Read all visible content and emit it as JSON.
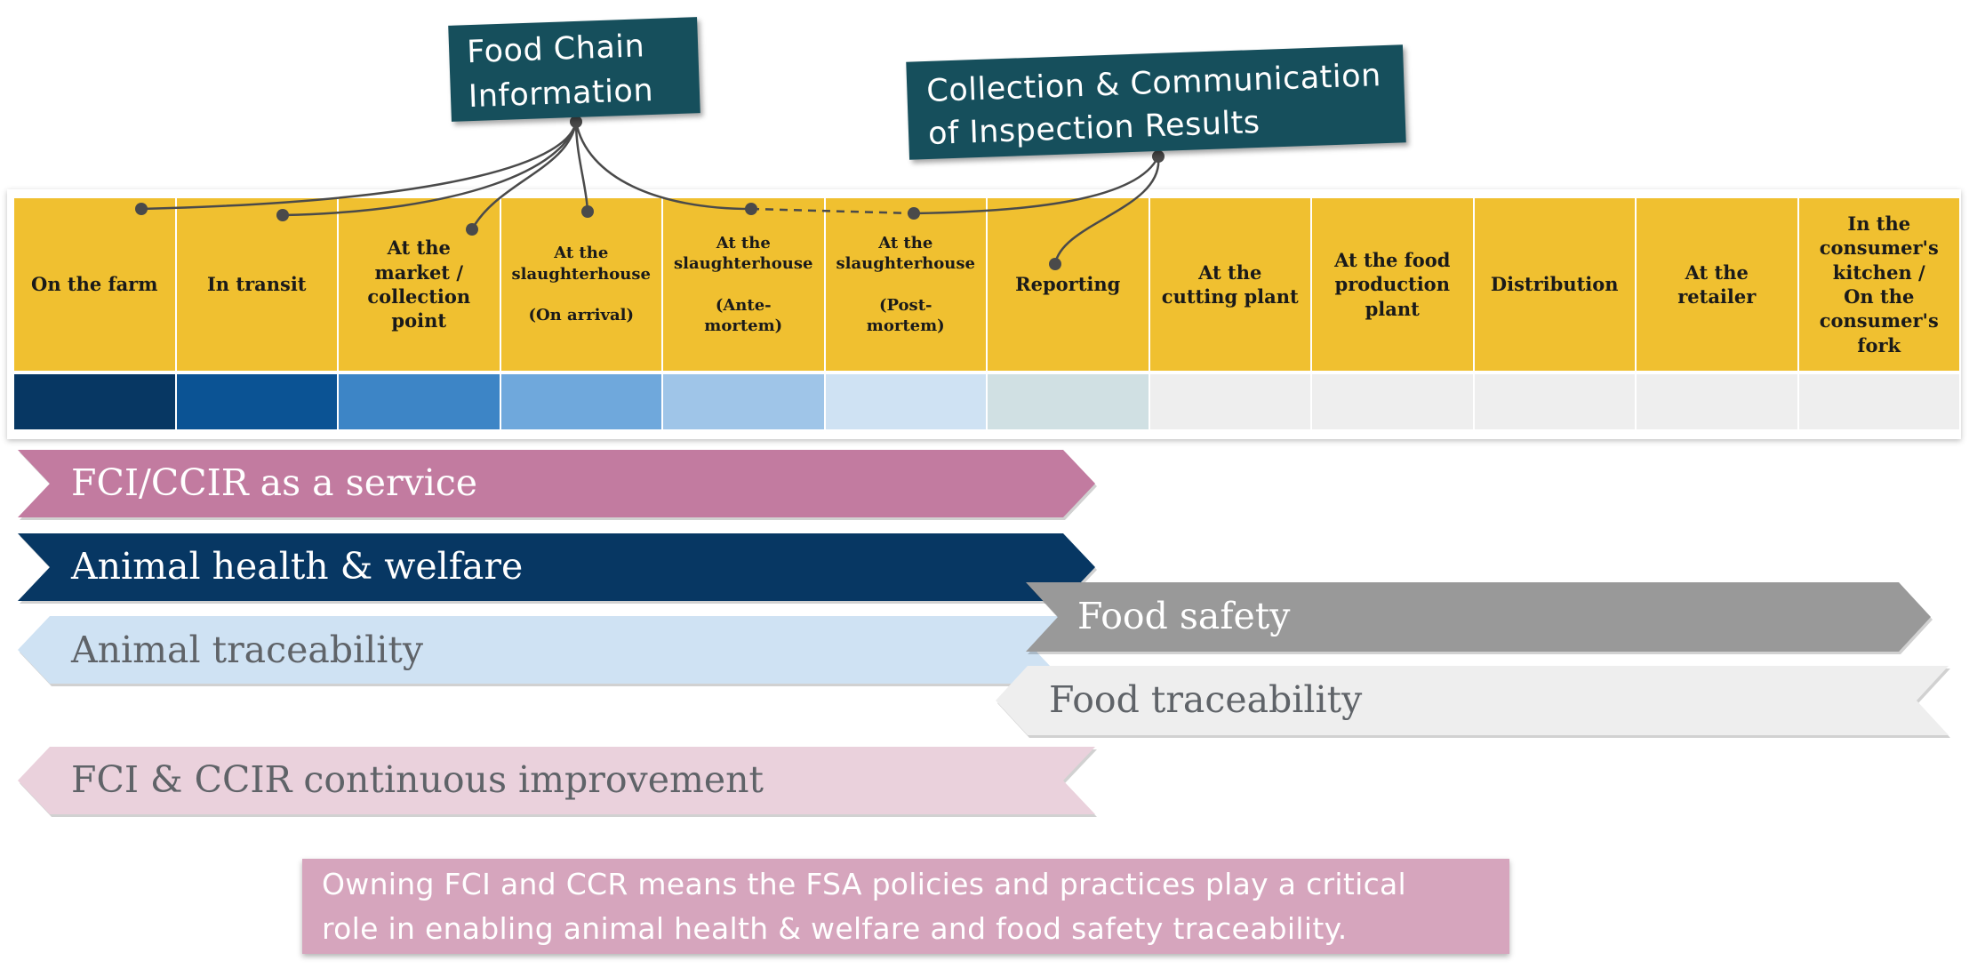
{
  "callouts": {
    "food_chain_information": "Food Chain\nInformation",
    "ccir": "Collection & Communication\nof Inspection Results"
  },
  "stages": [
    {
      "label": "On the farm",
      "size": 21
    },
    {
      "label": "In transit",
      "size": 21
    },
    {
      "label": "At the\nmarket /\ncollection\npoint",
      "size": 21
    },
    {
      "label": "At the\nslaughterhouse\n\n(On arrival)",
      "size": 18
    },
    {
      "label": "At the\nslaughterhouse\n\n(Ante-\nmortem)",
      "size": 18
    },
    {
      "label": "At the\nslaughterhouse\n\n(Post-\nmortem)",
      "size": 18
    },
    {
      "label": "Reporting",
      "size": 21
    },
    {
      "label": "At the\ncutting plant",
      "size": 21
    },
    {
      "label": "At the food\nproduction\nplant",
      "size": 21
    },
    {
      "label": "Distribution",
      "size": 21
    },
    {
      "label": "At the\nretailer",
      "size": 21
    },
    {
      "label": "In the\nconsumer's\nkitchen /\nOn the\nconsumer's\nfork",
      "size": 21
    }
  ],
  "swatch_colors": [
    "#073763",
    "#0b5394",
    "#3d85c6",
    "#6fa8dc",
    "#9fc5e8",
    "#cfe2f3",
    "#d0e0e3",
    "#eeeeee",
    "#eeeeee",
    "#eeeeee",
    "#eeeeee",
    "#eeeeee"
  ],
  "banners": [
    {
      "label": "FCI/CCIR as a service",
      "color": "#c27ba0",
      "text_color": "#ffffff",
      "direction": "right"
    },
    {
      "label": "Animal health & welfare",
      "color": "#073763",
      "text_color": "#ffffff",
      "direction": "right"
    },
    {
      "label": "Animal traceability",
      "color": "#cfe2f3",
      "text_color": "#5f6368",
      "direction": "left"
    },
    {
      "label": "Food safety",
      "color": "#999999",
      "text_color": "#ffffff",
      "direction": "right"
    },
    {
      "label": "Food traceability",
      "color": "#eeeeee",
      "text_color": "#5f6368",
      "direction": "left"
    },
    {
      "label": "FCI & CCIR continuous improvement",
      "color": "#ead1dc",
      "text_color": "#5f6368",
      "direction": "left"
    }
  ],
  "note": "Owning FCI and CCR means the FSA policies and practices play a critical\nrole in enabling animal health & welfare and food safety traceability.",
  "colors": {
    "stage_yellow": "#f0c030",
    "callout_teal": "#164f5c",
    "connector": "#4a4a4a",
    "note_pink": "#d6a5bd"
  }
}
